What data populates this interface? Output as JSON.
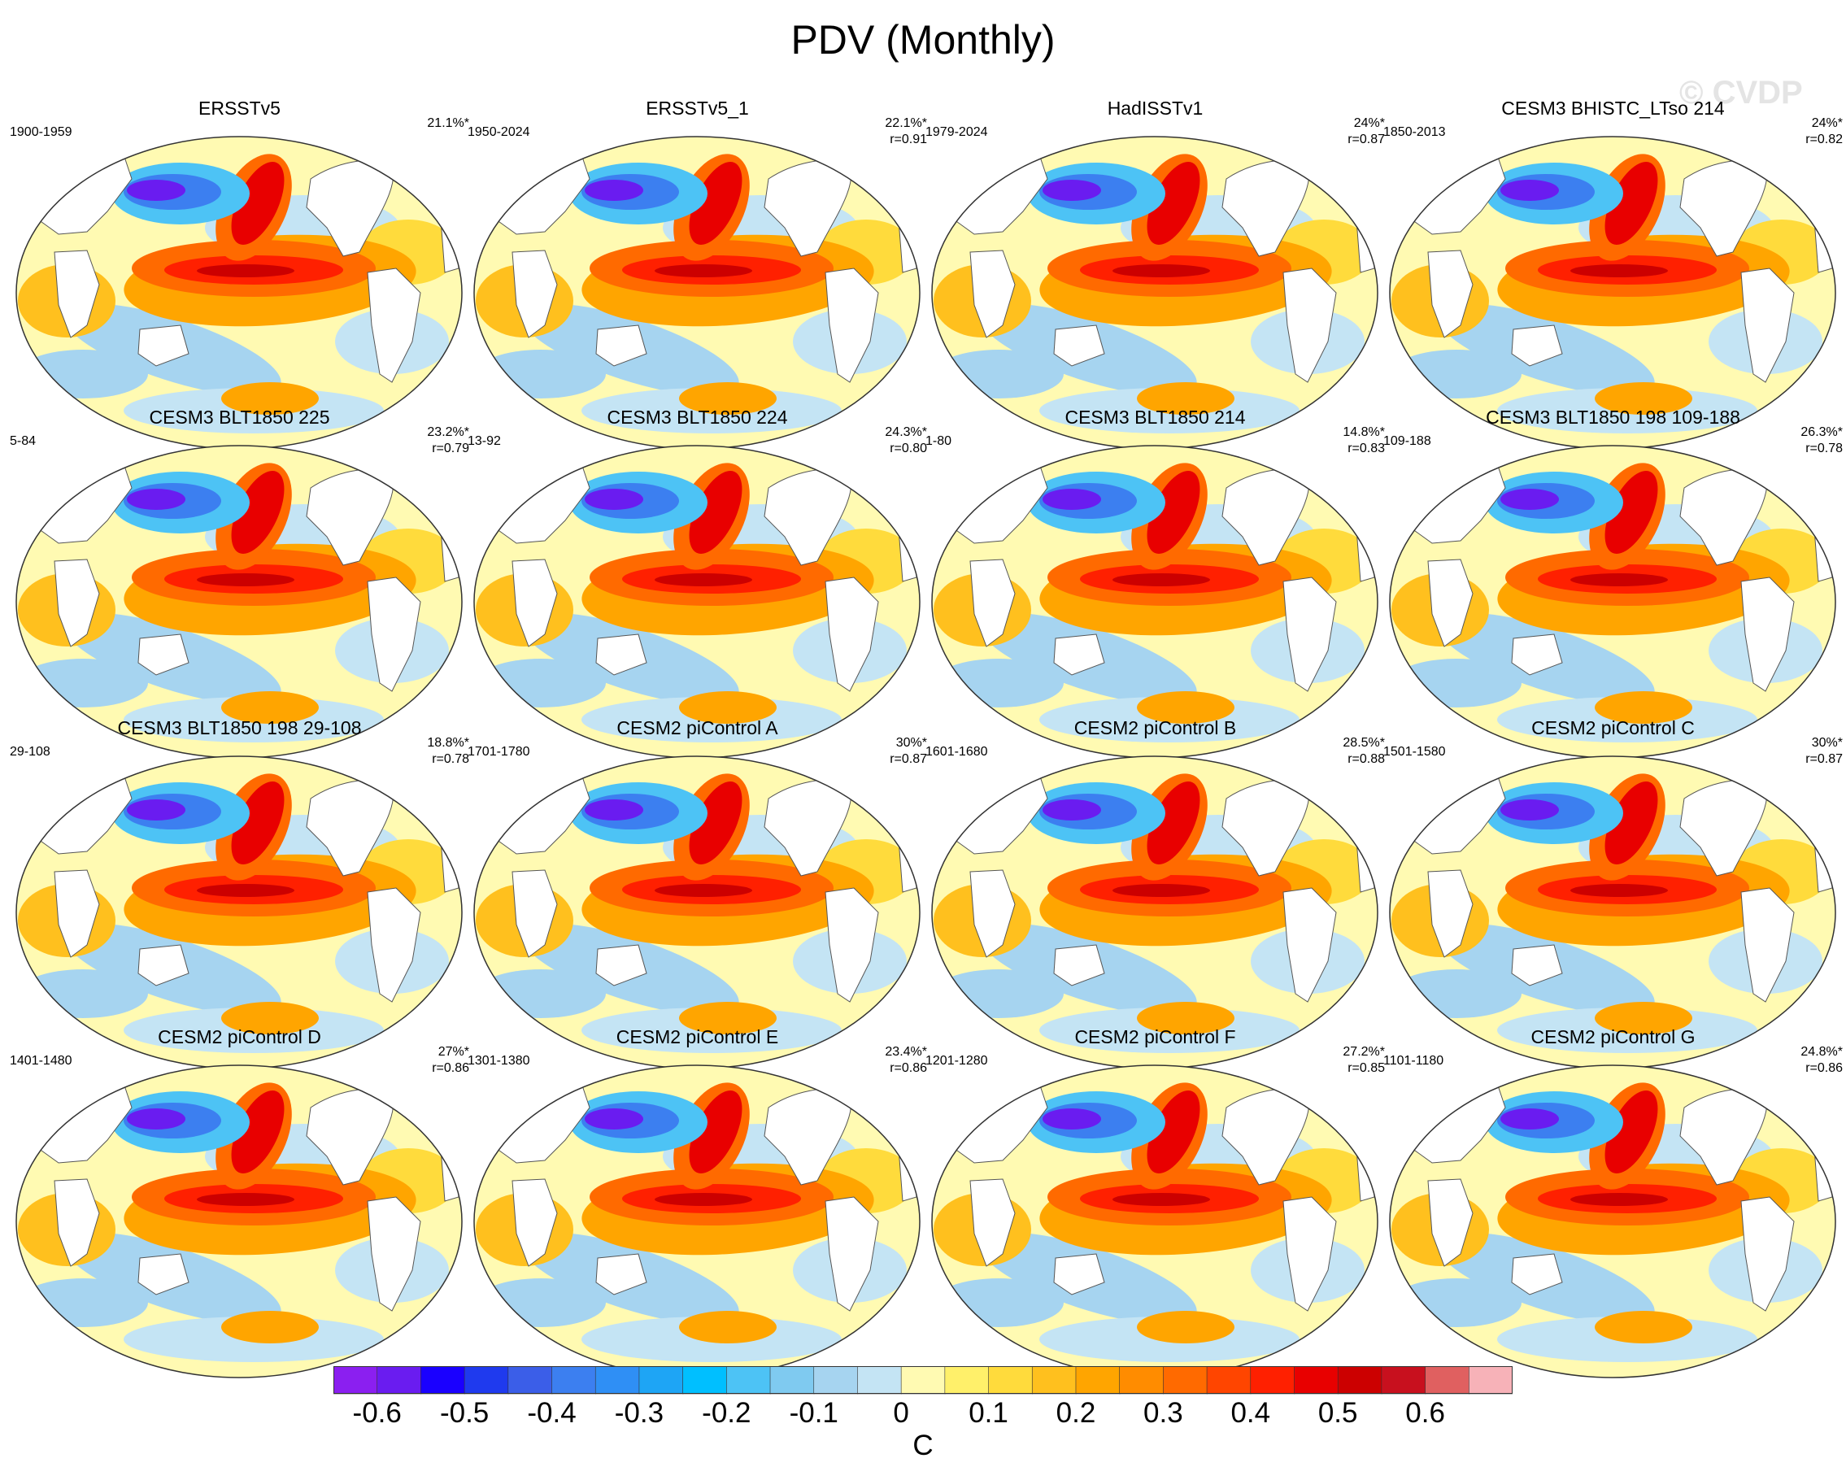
{
  "figure": {
    "title": "PDV (Monthly)",
    "watermark": "© CVDP",
    "units": "C"
  },
  "chart_data": {
    "type": "heatmap",
    "title": "PDV (Monthly)",
    "colorbar": {
      "units": "C",
      "levels": [
        -0.6,
        -0.55,
        -0.5,
        -0.45,
        -0.4,
        -0.35,
        -0.3,
        -0.25,
        -0.2,
        -0.15,
        -0.1,
        -0.05,
        0,
        0.05,
        0.1,
        0.15,
        0.2,
        0.25,
        0.3,
        0.35,
        0.4,
        0.45,
        0.5,
        0.55,
        0.6,
        0.65
      ],
      "tick_labels": [
        "-0.6",
        "-0.5",
        "-0.4",
        "-0.3",
        "-0.2",
        "-0.1",
        "0",
        "0.1",
        "0.2",
        "0.3",
        "0.4",
        "0.5",
        "0.6"
      ],
      "tick_values": [
        -0.6,
        -0.5,
        -0.4,
        -0.3,
        -0.2,
        -0.1,
        0,
        0.1,
        0.2,
        0.3,
        0.4,
        0.5,
        0.6
      ],
      "colors": [
        "#8b1ff0",
        "#6a1cf0",
        "#1a00ff",
        "#1f3aee",
        "#3b5ee8",
        "#3c7ff0",
        "#2f8ff5",
        "#1ea5f5",
        "#00bfff",
        "#4dc3f5",
        "#7fcaf0",
        "#a6d4f0",
        "#c4e4f4",
        "#fffab2",
        "#fff06a",
        "#ffdb3c",
        "#ffc01e",
        "#ffa500",
        "#ff8c00",
        "#ff6a00",
        "#ff4500",
        "#ff2000",
        "#e80000",
        "#cc0000",
        "#c8101e",
        "#e06060",
        "#f7b2b8"
      ]
    },
    "panels": [
      {
        "title": "ERSSTv5",
        "years": "1900-1959",
        "pct": "21.1%*",
        "r": ""
      },
      {
        "title": "ERSSTv5_1",
        "years": "1950-2024",
        "pct": "22.1%*",
        "r": "r=0.91"
      },
      {
        "title": "HadISSTv1",
        "years": "1979-2024",
        "pct": "24%*",
        "r": "r=0.87"
      },
      {
        "title": "CESM3 BHISTC_LTso 214",
        "years": "1850-2013",
        "pct": "24%*",
        "r": "r=0.82"
      },
      {
        "title": "CESM3 BLT1850 225",
        "years": "5-84",
        "pct": "23.2%*",
        "r": "r=0.79"
      },
      {
        "title": "CESM3 BLT1850 224",
        "years": "13-92",
        "pct": "24.3%*",
        "r": "r=0.80"
      },
      {
        "title": "CESM3 BLT1850 214",
        "years": "1-80",
        "pct": "14.8%*",
        "r": "r=0.83"
      },
      {
        "title": "CESM3 BLT1850 198 109-188",
        "years": "109-188",
        "pct": "26.3%*",
        "r": "r=0.78"
      },
      {
        "title": "CESM3 BLT1850 198 29-108",
        "years": "29-108",
        "pct": "18.8%*",
        "r": "r=0.78"
      },
      {
        "title": "CESM2 piControl A",
        "years": "1701-1780",
        "pct": "30%*",
        "r": "r=0.87"
      },
      {
        "title": "CESM2 piControl B",
        "years": "1601-1680",
        "pct": "28.5%*",
        "r": "r=0.88"
      },
      {
        "title": "CESM2 piControl C",
        "years": "1501-1580",
        "pct": "30%*",
        "r": "r=0.87"
      },
      {
        "title": "CESM2 piControl D",
        "years": "1401-1480",
        "pct": "27%*",
        "r": "r=0.86"
      },
      {
        "title": "CESM2 piControl E",
        "years": "1301-1380",
        "pct": "23.4%*",
        "r": "r=0.86"
      },
      {
        "title": "CESM2 piControl F",
        "years": "1201-1280",
        "pct": "27.2%*",
        "r": "r=0.85"
      },
      {
        "title": "CESM2 piControl G",
        "years": "1101-1180",
        "pct": "24.8%*",
        "r": "r=0.86"
      }
    ]
  }
}
